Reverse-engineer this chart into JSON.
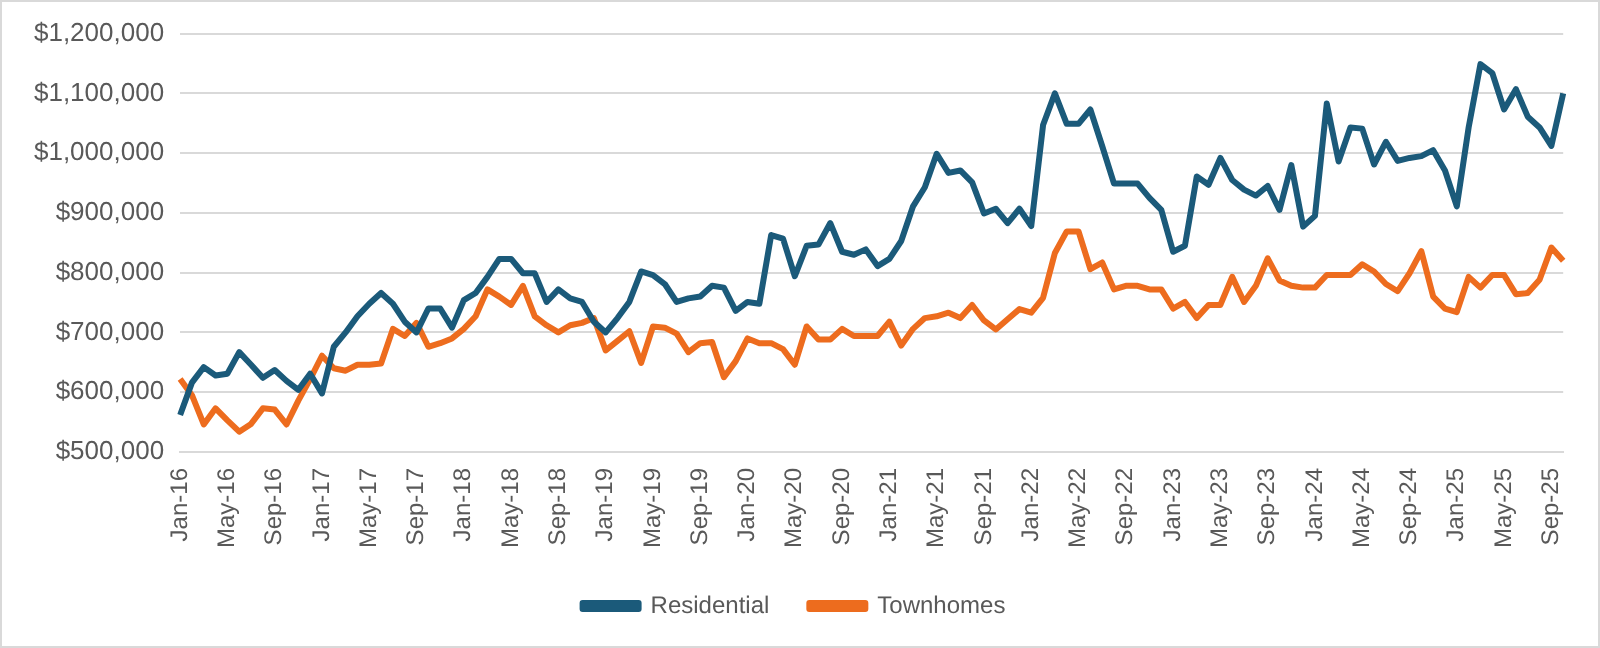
{
  "chart_data": {
    "type": "line",
    "categories": [
      "Jan-16",
      null,
      null,
      null,
      "May-16",
      null,
      null,
      null,
      "Sep-16",
      null,
      null,
      null,
      "Jan-17",
      null,
      null,
      null,
      "May-17",
      null,
      null,
      null,
      "Sep-17",
      null,
      null,
      null,
      "Jan-18",
      null,
      null,
      null,
      "May-18",
      null,
      null,
      null,
      "Sep-18",
      null,
      null,
      null,
      "Jan-19",
      null,
      null,
      null,
      "May-19",
      null,
      null,
      null,
      "Sep-19",
      null,
      null,
      null,
      "Jan-20",
      null,
      null,
      null,
      "May-20",
      null,
      null,
      null,
      "Sep-20",
      null,
      null,
      null,
      "Jan-21",
      null,
      null,
      null,
      "May-21",
      null,
      null,
      null,
      "Sep-21",
      null,
      null,
      null,
      "Jan-22",
      null,
      null,
      null,
      "May-22",
      null,
      null,
      null,
      "Sep-22",
      null,
      null,
      null,
      "Jan-23",
      null,
      null,
      null,
      "May-23",
      null,
      null,
      null,
      "Sep-23",
      null,
      null,
      null,
      "Jan-24",
      null,
      null,
      null,
      "May-24",
      null,
      null,
      null,
      "Sep-24",
      null,
      null,
      null,
      "Jan-25",
      null,
      null,
      null,
      "May-25",
      null,
      null,
      null,
      "Sep-25",
      null
    ],
    "series": [
      {
        "name": "Residential",
        "color": "#1b5a7a",
        "values": [
          562000,
          616000,
          642000,
          628000,
          631000,
          667000,
          646000,
          624000,
          637000,
          619000,
          604000,
          631000,
          598000,
          676000,
          700000,
          727000,
          748000,
          766000,
          748000,
          718000,
          700000,
          740000,
          740000,
          708000,
          754000,
          766000,
          793000,
          823000,
          823000,
          799000,
          799000,
          751000,
          772000,
          757000,
          751000,
          718000,
          700000,
          724000,
          751000,
          802000,
          796000,
          781000,
          751000,
          757000,
          760000,
          778000,
          775000,
          736000,
          751000,
          748000,
          863000,
          857000,
          794000,
          845000,
          847000,
          883000,
          835000,
          830000,
          839000,
          811000,
          823000,
          853000,
          911000,
          943000,
          999000,
          967000,
          971000,
          951000,
          899000,
          907000,
          883000,
          907000,
          878000,
          1047000,
          1100000,
          1049000,
          1049000,
          1073000,
          1012000,
          949000,
          949000,
          949000,
          925000,
          905000,
          835000,
          845000,
          961000,
          947000,
          992000,
          955000,
          939000,
          929000,
          945000,
          905000,
          980000,
          877000,
          895000,
          1083000,
          986000,
          1043000,
          1041000,
          981000,
          1019000,
          987000,
          992000,
          995000,
          1005000,
          971000,
          911000,
          1043000,
          1149000,
          1134000,
          1073000,
          1107000,
          1061000,
          1043000,
          1012000,
          1100000
        ]
      },
      {
        "name": "Townhomes",
        "color": "#ed6c1e",
        "values": [
          622000,
          595000,
          546000,
          573000,
          553000,
          534000,
          547000,
          573000,
          571000,
          546000,
          586000,
          622000,
          661000,
          640000,
          636000,
          646000,
          646000,
          648000,
          706000,
          694000,
          716000,
          676000,
          682000,
          690000,
          706000,
          727000,
          772000,
          760000,
          746000,
          778000,
          727000,
          712000,
          700000,
          712000,
          716000,
          724000,
          670000,
          686000,
          702000,
          649000,
          710000,
          708000,
          698000,
          667000,
          682000,
          684000,
          625000,
          652000,
          690000,
          682000,
          682000,
          672000,
          646000,
          710000,
          688000,
          688000,
          706000,
          694000,
          694000,
          694000,
          718000,
          678000,
          706000,
          724000,
          727000,
          733000,
          724000,
          746000,
          720000,
          705000,
          722000,
          739000,
          733000,
          758000,
          833000,
          869000,
          869000,
          806000,
          817000,
          772000,
          778000,
          778000,
          772000,
          772000,
          740000,
          751000,
          724000,
          746000,
          746000,
          793000,
          751000,
          778000,
          824000,
          787000,
          778000,
          775000,
          775000,
          796000,
          796000,
          796000,
          814000,
          802000,
          781000,
          769000,
          799000,
          836000,
          760000,
          740000,
          734000,
          793000,
          775000,
          796000,
          796000,
          764000,
          766000,
          788000,
          842000,
          820000
        ]
      }
    ],
    "ylim": [
      500000,
      1200000
    ],
    "yticks": [
      {
        "value": 500000,
        "label": "$500,000"
      },
      {
        "value": 600000,
        "label": "$600,000"
      },
      {
        "value": 700000,
        "label": "$700,000"
      },
      {
        "value": 800000,
        "label": "$800,000"
      },
      {
        "value": 900000,
        "label": "$900,000"
      },
      {
        "value": 1000000,
        "label": "$1,000,000"
      },
      {
        "value": 1100000,
        "label": "$1,100,000"
      },
      {
        "value": 1200000,
        "label": "$1,200,000"
      }
    ],
    "grid": "y",
    "legend": "bottom",
    "marker": "none",
    "line_style": "solid"
  }
}
